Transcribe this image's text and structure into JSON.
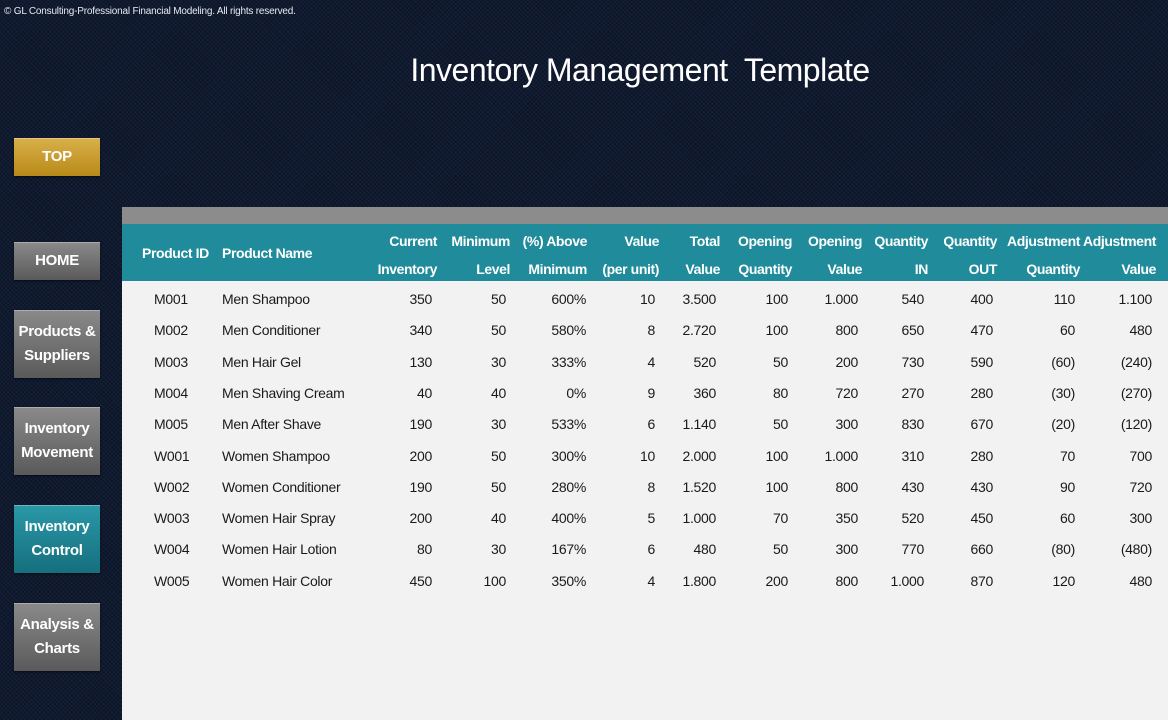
{
  "copyright": "© GL Consulting-Professional Financial Modeling. All rights reserved.",
  "title": "Inventory Management  Template",
  "nav": {
    "top": "TOP",
    "home": "HOME",
    "products": [
      "Products &",
      "Suppliers"
    ],
    "movement": [
      "Inventory",
      "Movement"
    ],
    "control": [
      "Inventory",
      "Control"
    ],
    "analysis": [
      "Analysis &",
      "Charts"
    ]
  },
  "columns": [
    [
      "Product ID"
    ],
    [
      "Product Name"
    ],
    [
      "Current",
      "Inventory"
    ],
    [
      "Minimum",
      "Level"
    ],
    [
      "(%) Above",
      "Minimum"
    ],
    [
      "Value",
      "(per unit)"
    ],
    [
      "Total",
      "Value"
    ],
    [
      "Opening",
      "Quantity"
    ],
    [
      "Opening",
      "Value"
    ],
    [
      "Quantity",
      "IN"
    ],
    [
      "Quantity",
      "OUT"
    ],
    [
      "Adjustment",
      "Quantity"
    ],
    [
      "Adjustment",
      "Value"
    ]
  ],
  "rows": [
    [
      "M001",
      "Men Shampoo",
      "350",
      "50",
      "600%",
      "10",
      "3.500",
      "100",
      "1.000",
      "540",
      "400",
      "110",
      "1.100"
    ],
    [
      "M002",
      "Men Conditioner",
      "340",
      "50",
      "580%",
      "8",
      "2.720",
      "100",
      "800",
      "650",
      "470",
      "60",
      "480"
    ],
    [
      "M003",
      "Men Hair Gel",
      "130",
      "30",
      "333%",
      "4",
      "520",
      "50",
      "200",
      "730",
      "590",
      "(60)",
      "(240)"
    ],
    [
      "M004",
      "Men Shaving Cream",
      "40",
      "40",
      "0%",
      "9",
      "360",
      "80",
      "720",
      "270",
      "280",
      "(30)",
      "(270)"
    ],
    [
      "M005",
      "Men After Shave",
      "190",
      "30",
      "533%",
      "6",
      "1.140",
      "50",
      "300",
      "830",
      "670",
      "(20)",
      "(120)"
    ],
    [
      "W001",
      "Women Shampoo",
      "200",
      "50",
      "300%",
      "10",
      "2.000",
      "100",
      "1.000",
      "310",
      "280",
      "70",
      "700"
    ],
    [
      "W002",
      "Women Conditioner",
      "190",
      "50",
      "280%",
      "8",
      "1.520",
      "100",
      "800",
      "430",
      "430",
      "90",
      "720"
    ],
    [
      "W003",
      "Women Hair Spray",
      "200",
      "40",
      "400%",
      "5",
      "1.000",
      "70",
      "350",
      "520",
      "450",
      "60",
      "300"
    ],
    [
      "W004",
      "Women Hair Lotion",
      "80",
      "30",
      "167%",
      "6",
      "480",
      "50",
      "300",
      "770",
      "660",
      "(80)",
      "(480)"
    ],
    [
      "W005",
      "Women Hair Color",
      "450",
      "100",
      "350%",
      "4",
      "1.800",
      "200",
      "800",
      "1.000",
      "870",
      "120",
      "480"
    ]
  ]
}
